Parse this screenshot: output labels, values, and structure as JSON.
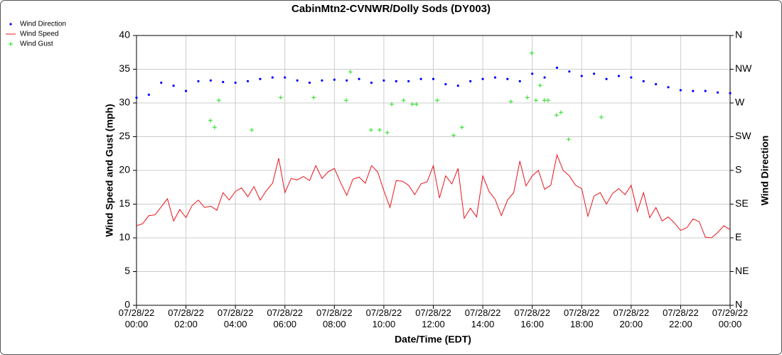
{
  "chart_data": {
    "type": "line",
    "title": "CabinMtn2-CVNWR/Dolly Sods (DY003)",
    "x_label": "Date/Time (EDT)",
    "y_label": "Wind Speed and Gust (mph)",
    "y2_label": "Wind Direction",
    "xlim": [
      0,
      24
    ],
    "xticks": [
      {
        "value": 0,
        "label": "07/28/22\n00:00"
      },
      {
        "value": 2,
        "label": "07/28/22\n02:00"
      },
      {
        "value": 4,
        "label": "07/28/22\n04:00"
      },
      {
        "value": 6,
        "label": "07/28/22\n06:00"
      },
      {
        "value": 8,
        "label": "07/28/22\n08:00"
      },
      {
        "value": 10,
        "label": "07/28/22\n10:00"
      },
      {
        "value": 12,
        "label": "07/28/22\n12:00"
      },
      {
        "value": 14,
        "label": "07/28/22\n14:00"
      },
      {
        "value": 16,
        "label": "07/28/22\n16:00"
      },
      {
        "value": 18,
        "label": "07/28/22\n18:00"
      },
      {
        "value": 20,
        "label": "07/28/22\n20:00"
      },
      {
        "value": 22,
        "label": "07/28/22\n22:00"
      },
      {
        "value": 24,
        "label": "07/29/22\n00:00"
      }
    ],
    "ylim": [
      0,
      40
    ],
    "yticks": [
      0,
      5,
      10,
      15,
      20,
      25,
      30,
      35,
      40
    ],
    "y2lim": [
      0,
      360
    ],
    "y2ticks": [
      {
        "value": 0,
        "label": "N"
      },
      {
        "value": 45,
        "label": "NE"
      },
      {
        "value": 90,
        "label": "E"
      },
      {
        "value": 135,
        "label": "SE"
      },
      {
        "value": 180,
        "label": "S"
      },
      {
        "value": 225,
        "label": "SW"
      },
      {
        "value": 270,
        "label": "W"
      },
      {
        "value": 315,
        "label": "NW"
      },
      {
        "value": 360,
        "label": "N"
      }
    ],
    "grid": true,
    "legend": "top-left",
    "series": [
      {
        "name": "Wind Direction",
        "color": "#0000ff",
        "mode": "markers",
        "marker": "dot",
        "axis": "y2",
        "x": [
          0,
          0.5,
          1,
          1.5,
          2,
          2.5,
          3,
          3.5,
          4,
          4.5,
          5,
          5.5,
          6,
          6.5,
          7,
          7.5,
          8,
          8.5,
          9,
          9.5,
          10,
          10.5,
          11,
          11.5,
          12,
          12.5,
          13,
          13.5,
          14,
          14.5,
          15,
          15.5,
          16,
          16.5,
          17,
          17.5,
          18,
          18.5,
          19,
          19.5,
          20,
          20.5,
          21,
          21.5,
          22,
          22.5,
          23,
          23.5,
          24
        ],
        "values": [
          277,
          281,
          297,
          293,
          286,
          299,
          300,
          298,
          297,
          299,
          302,
          304,
          304,
          300,
          297,
          300,
          301,
          300,
          302,
          297,
          300,
          299,
          299,
          302,
          302,
          295,
          293,
          299,
          302,
          304,
          302,
          299,
          309,
          304,
          317,
          312,
          306,
          309,
          302,
          306,
          304,
          299,
          295,
          291,
          287,
          286,
          286,
          284,
          283
        ]
      },
      {
        "name": "Wind Speed",
        "color": "#e8141b",
        "mode": "lines",
        "x": [
          0,
          0.25,
          0.5,
          0.75,
          1,
          1.25,
          1.5,
          1.75,
          2,
          2.25,
          2.5,
          2.75,
          3,
          3.25,
          3.5,
          3.75,
          4,
          4.25,
          4.5,
          4.75,
          5,
          5.25,
          5.5,
          5.75,
          6,
          6.25,
          6.5,
          6.75,
          7,
          7.25,
          7.5,
          7.75,
          8,
          8.25,
          8.5,
          8.75,
          9,
          9.25,
          9.5,
          9.75,
          10,
          10.25,
          10.5,
          10.75,
          11,
          11.25,
          11.5,
          11.75,
          12,
          12.25,
          12.5,
          12.75,
          13,
          13.25,
          13.5,
          13.75,
          14,
          14.25,
          14.5,
          14.75,
          15,
          15.25,
          15.5,
          15.75,
          16,
          16.25,
          16.5,
          16.75,
          17,
          17.25,
          17.5,
          17.75,
          18,
          18.25,
          18.5,
          18.75,
          19,
          19.25,
          19.5,
          19.75,
          20,
          20.25,
          20.5,
          20.75,
          21,
          21.25,
          21.5,
          21.75,
          22,
          22.25,
          22.5,
          22.75,
          23,
          23.25,
          23.5,
          23.75,
          24
        ],
        "values": [
          11.8,
          12.1,
          13.3,
          13.4,
          14.6,
          15.8,
          12.5,
          14.2,
          13.0,
          14.8,
          15.6,
          14.5,
          14.7,
          14.1,
          16.7,
          15.6,
          16.9,
          17.4,
          16.1,
          17.6,
          15.6,
          17.0,
          18.1,
          21.8,
          16.7,
          18.8,
          18.6,
          19.1,
          18.5,
          20.7,
          18.8,
          19.8,
          20.3,
          18.2,
          16.3,
          18.7,
          19.0,
          18.1,
          20.7,
          19.8,
          17.0,
          14.5,
          18.5,
          18.4,
          17.8,
          16.4,
          18.0,
          18.3,
          20.7,
          15.9,
          19.2,
          18.0,
          20.3,
          12.9,
          14.4,
          13.1,
          19.2,
          16.9,
          15.7,
          13.3,
          15.6,
          16.7,
          21.4,
          17.7,
          19.2,
          20.0,
          17.2,
          17.8,
          22.3,
          20.0,
          19.2,
          17.8,
          17.3,
          13.2,
          16.2,
          16.7,
          15.0,
          16.6,
          17.3,
          16.4,
          17.8,
          13.9,
          16.7,
          13.0,
          14.5,
          12.5,
          13.1,
          12.2,
          11.1,
          11.5,
          12.8,
          12.4,
          10.1,
          10.0,
          10.8,
          11.8,
          11.2
        ]
      },
      {
        "name": "Wind Gust",
        "color": "#22dd22",
        "mode": "markers",
        "marker": "plus",
        "x": [
          2.99,
          3.16,
          3.33,
          4.66,
          5.83,
          7.16,
          8.48,
          8.65,
          9.48,
          9.83,
          10.14,
          10.32,
          10.8,
          11.15,
          11.32,
          12.16,
          12.82,
          13.16,
          15.14,
          15.8,
          15.98,
          16.15,
          16.32,
          16.49,
          16.64,
          16.98,
          17.16,
          17.47,
          18.79
        ],
        "values": [
          27.4,
          26.4,
          30.4,
          26.0,
          30.8,
          30.8,
          30.4,
          34.6,
          26.0,
          26.0,
          25.6,
          29.8,
          30.4,
          29.8,
          29.8,
          30.4,
          25.2,
          26.4,
          30.2,
          30.8,
          37.4,
          30.4,
          32.6,
          30.4,
          30.4,
          28.2,
          28.6,
          24.6,
          27.9
        ]
      }
    ]
  }
}
